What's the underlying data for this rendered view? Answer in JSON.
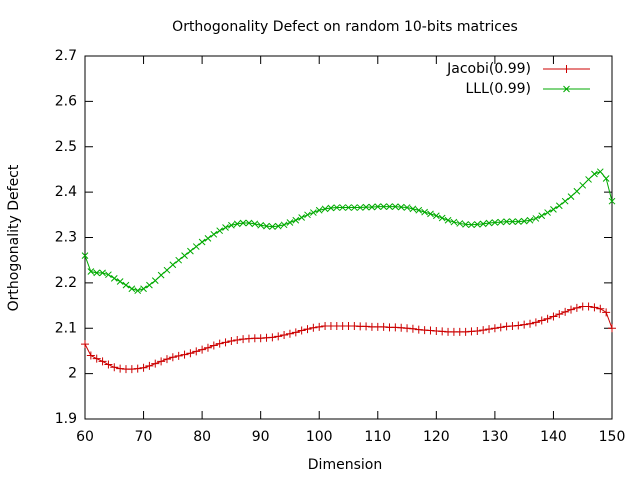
{
  "chart_data": {
    "type": "line",
    "title": "Orthogonality Defect on random 10-bits matrices",
    "x_label": "Dimension",
    "y_label": "Orthogonality Defect",
    "x": [
      60,
      61,
      62,
      63,
      64,
      65,
      66,
      67,
      68,
      69,
      70,
      71,
      72,
      73,
      74,
      75,
      76,
      77,
      78,
      79,
      80,
      81,
      82,
      83,
      84,
      85,
      86,
      87,
      88,
      89,
      90,
      91,
      92,
      93,
      94,
      95,
      96,
      97,
      98,
      99,
      100,
      101,
      102,
      103,
      104,
      105,
      106,
      107,
      108,
      109,
      110,
      111,
      112,
      113,
      114,
      115,
      116,
      117,
      118,
      119,
      120,
      121,
      122,
      123,
      124,
      125,
      126,
      127,
      128,
      129,
      130,
      131,
      132,
      133,
      134,
      135,
      136,
      137,
      138,
      139,
      140,
      141,
      142,
      143,
      144,
      145,
      146,
      147,
      148,
      149,
      150
    ],
    "series": [
      {
        "name": "Jacobi(0.99)",
        "color": "#cc0000",
        "marker": "plus",
        "values": [
          2.065,
          2.04,
          2.033,
          2.027,
          2.02,
          2.014,
          2.011,
          2.01,
          2.01,
          2.011,
          2.013,
          2.017,
          2.022,
          2.027,
          2.032,
          2.036,
          2.039,
          2.042,
          2.045,
          2.049,
          2.053,
          2.057,
          2.062,
          2.066,
          2.069,
          2.072,
          2.074,
          2.076,
          2.077,
          2.078,
          2.078,
          2.079,
          2.08,
          2.082,
          2.085,
          2.088,
          2.091,
          2.095,
          2.098,
          2.101,
          2.103,
          2.105,
          2.105,
          2.105,
          2.105,
          2.105,
          2.105,
          2.104,
          2.104,
          2.103,
          2.103,
          2.103,
          2.102,
          2.102,
          2.101,
          2.1,
          2.099,
          2.097,
          2.096,
          2.095,
          2.094,
          2.093,
          2.092,
          2.092,
          2.092,
          2.092,
          2.093,
          2.094,
          2.096,
          2.098,
          2.1,
          2.102,
          2.104,
          2.105,
          2.106,
          2.108,
          2.11,
          2.113,
          2.117,
          2.121,
          2.126,
          2.131,
          2.136,
          2.141,
          2.145,
          2.148,
          2.148,
          2.146,
          2.143,
          2.135,
          2.1
        ]
      },
      {
        "name": "LLL(0.99)",
        "color": "#00aa00",
        "marker": "cross",
        "values": [
          2.26,
          2.225,
          2.222,
          2.222,
          2.218,
          2.21,
          2.203,
          2.195,
          2.187,
          2.183,
          2.187,
          2.195,
          2.205,
          2.217,
          2.228,
          2.24,
          2.25,
          2.26,
          2.27,
          2.28,
          2.29,
          2.298,
          2.307,
          2.315,
          2.322,
          2.327,
          2.33,
          2.332,
          2.332,
          2.33,
          2.327,
          2.325,
          2.324,
          2.325,
          2.328,
          2.333,
          2.338,
          2.344,
          2.35,
          2.355,
          2.36,
          2.363,
          2.365,
          2.366,
          2.366,
          2.366,
          2.366,
          2.366,
          2.367,
          2.367,
          2.368,
          2.368,
          2.368,
          2.368,
          2.367,
          2.366,
          2.363,
          2.36,
          2.356,
          2.352,
          2.348,
          2.343,
          2.338,
          2.334,
          2.331,
          2.329,
          2.328,
          2.329,
          2.33,
          2.332,
          2.333,
          2.334,
          2.335,
          2.335,
          2.335,
          2.336,
          2.338,
          2.342,
          2.348,
          2.355,
          2.362,
          2.37,
          2.38,
          2.39,
          2.402,
          2.415,
          2.428,
          2.44,
          2.445,
          2.43,
          2.38
        ]
      }
    ],
    "xlim": [
      60,
      150
    ],
    "xticks": [
      60,
      70,
      80,
      90,
      100,
      110,
      120,
      130,
      140,
      150
    ],
    "ylim": [
      1.9,
      2.7
    ],
    "yticks": [
      1.9,
      2,
      2.1,
      2.2,
      2.3,
      2.4,
      2.5,
      2.6,
      2.7
    ],
    "grid": false,
    "legend": "top-right"
  }
}
